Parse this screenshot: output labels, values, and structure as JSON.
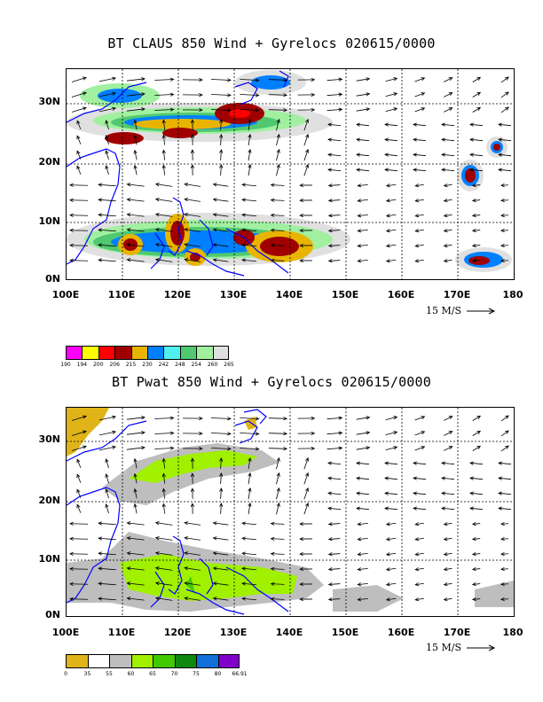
{
  "panels": [
    {
      "title": "BT CLAUS 850 Wind + Gyrelocs 020615/0000",
      "y_ticks": [
        "30N",
        "20N",
        "10N",
        "0N"
      ],
      "x_ticks": [
        "100E",
        "110E",
        "120E",
        "130E",
        "140E",
        "150E",
        "160E",
        "170E",
        "180"
      ],
      "scale_label": "15 M/S",
      "legend": {
        "colors": [
          "#ff00ff",
          "#ffff00",
          "#ff0000",
          "#a00000",
          "#e8b400",
          "#0080ff",
          "#50f0f0",
          "#50c870",
          "#a0f0a0",
          "#e0e0e0"
        ],
        "labels": [
          "190",
          "194",
          "200",
          "206",
          "215",
          "230",
          "242",
          "248",
          "254",
          "260",
          "265"
        ]
      }
    },
    {
      "title": "BT Pwat 850 Wind + Gyrelocs 020615/0000",
      "y_ticks": [
        "30N",
        "20N",
        "10N",
        "0N"
      ],
      "x_ticks": [
        "100E",
        "110E",
        "120E",
        "130E",
        "140E",
        "150E",
        "160E",
        "170E",
        "180"
      ],
      "scale_label": "15 M/S",
      "legend": {
        "colors": [
          "#e0b418",
          "#ffffff",
          "#bebebe",
          "#a0f000",
          "#40c800",
          "#108810",
          "#1070d8",
          "#8000c8"
        ],
        "labels": [
          "0",
          "35",
          "55",
          "60",
          "65",
          "70",
          "75",
          "80",
          "66.91"
        ]
      }
    }
  ]
}
